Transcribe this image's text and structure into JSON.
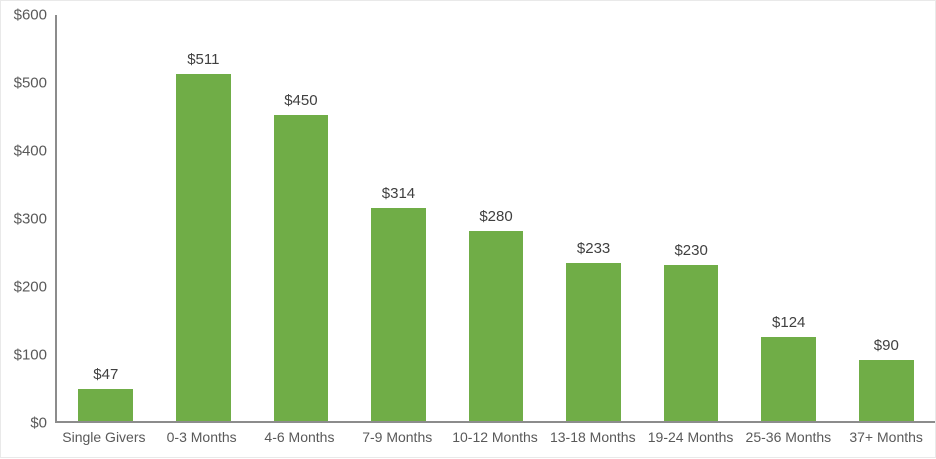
{
  "page": {
    "background_color": "#ffffff",
    "border_color": "#e9e9e9"
  },
  "chart_data": {
    "type": "bar",
    "title": "",
    "xlabel": "",
    "ylabel": "",
    "categories": [
      "Single Givers",
      "0-3 Months",
      "4-6 Months",
      "7-9 Months",
      "10-12 Months",
      "13-18 Months",
      "19-24 Months",
      "25-36 Months",
      "37+ Months"
    ],
    "values": [
      47,
      511,
      450,
      314,
      280,
      233,
      230,
      124,
      90
    ],
    "value_labels": [
      "$47",
      "$511",
      "$450",
      "$314",
      "$280",
      "$233",
      "$230",
      "$124",
      "$90"
    ],
    "ylim": [
      0,
      600
    ],
    "yticks": [
      {
        "value": 0,
        "label": "$0"
      },
      {
        "value": 100,
        "label": "$100"
      },
      {
        "value": 200,
        "label": "$200"
      },
      {
        "value": 300,
        "label": "$300"
      },
      {
        "value": 400,
        "label": "$400"
      },
      {
        "value": 500,
        "label": "$500"
      },
      {
        "value": 600,
        "label": "$600"
      }
    ],
    "grid": false,
    "legend_position": "none",
    "bar_color": "#70AD47",
    "axis_color": "#8c8c8c",
    "value_label_color": "#404040",
    "tick_label_color": "#595959"
  }
}
